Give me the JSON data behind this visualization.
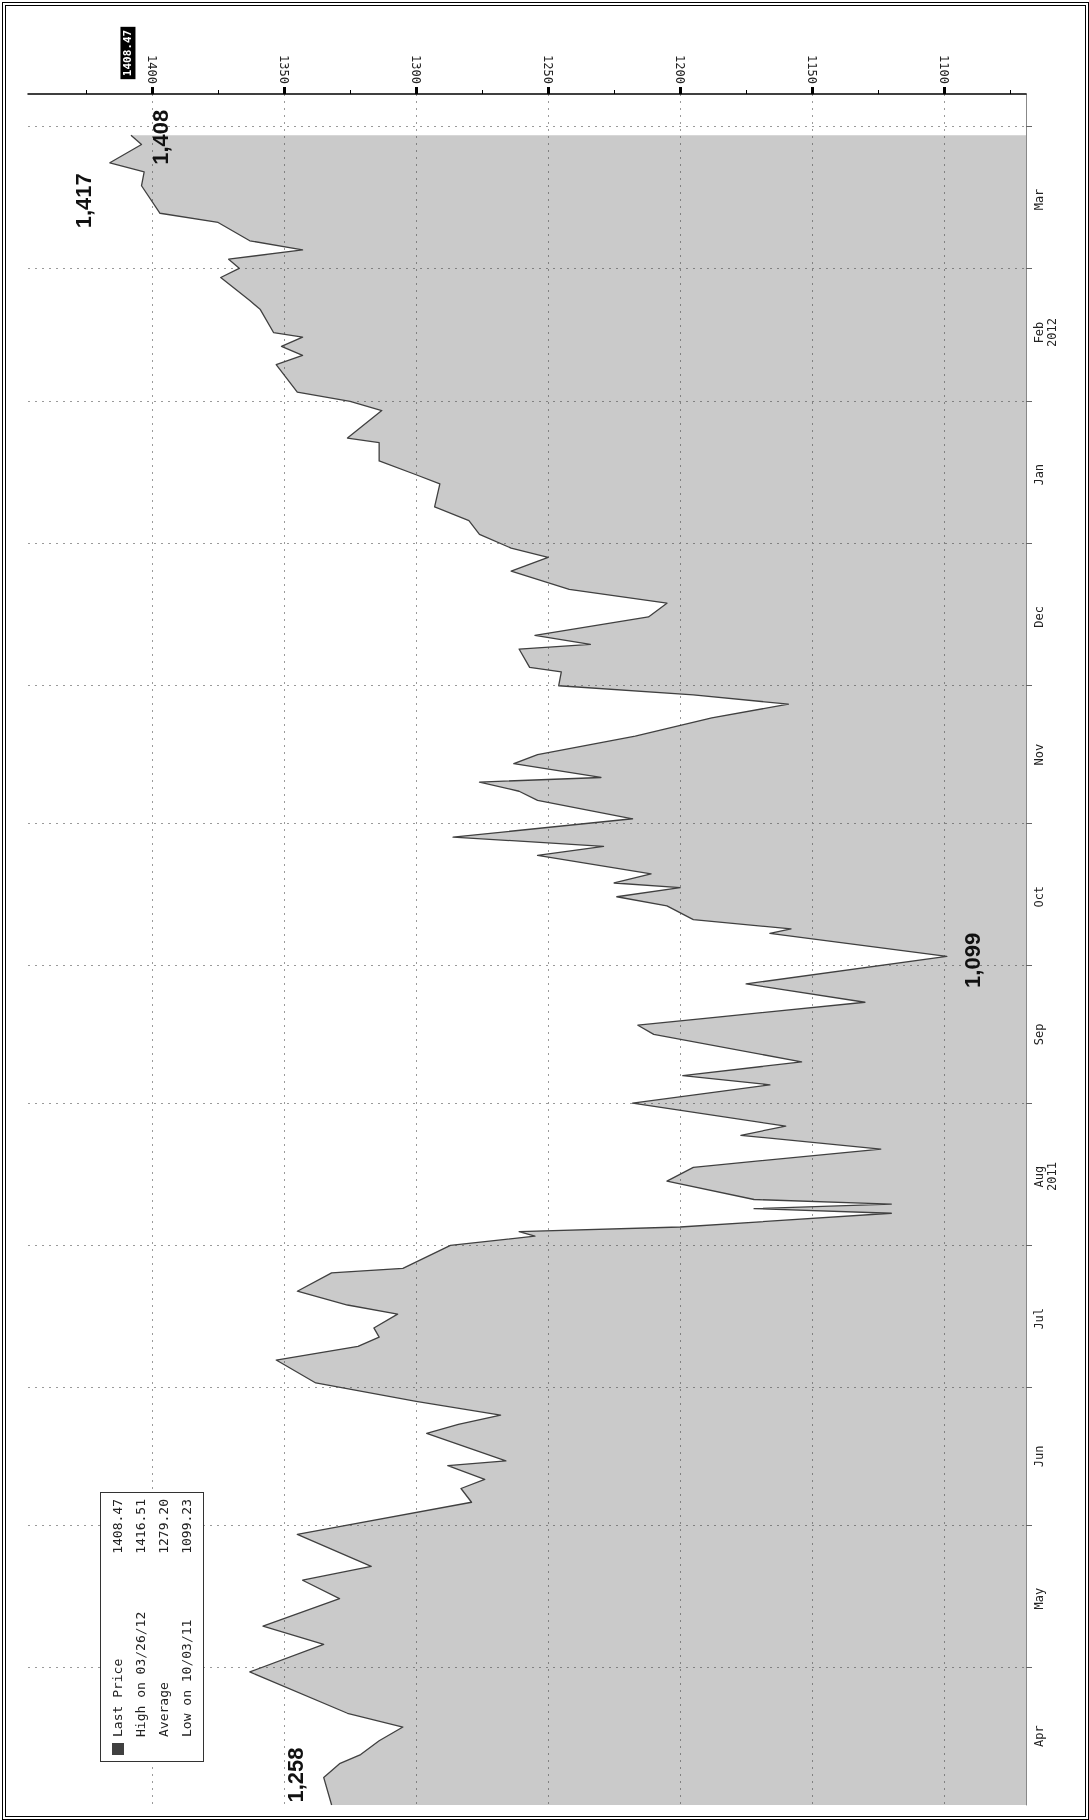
{
  "chart_data": {
    "type": "area",
    "orientation": "horizontal",
    "x": [
      "2011-04-01",
      "2011-04-07",
      "2011-04-10",
      "2011-04-12",
      "2011-04-15",
      "2011-04-18",
      "2011-04-21",
      "2011-04-30",
      "2011-05-06",
      "2011-05-10",
      "2011-05-16",
      "2011-05-20",
      "2011-05-23",
      "2011-05-30",
      "2011-06-06",
      "2011-06-09",
      "2011-06-11",
      "2011-06-14",
      "2011-06-15",
      "2011-06-21",
      "2011-06-23",
      "2011-06-25",
      "2011-06-28",
      "2011-07-02",
      "2011-07-07",
      "2011-07-10",
      "2011-07-12",
      "2011-07-14",
      "2011-07-17",
      "2011-07-19",
      "2011-07-22",
      "2011-07-26",
      "2011-07-27",
      "2011-08-01",
      "2011-08-03",
      "2011-08-04",
      "2011-08-05",
      "2011-08-08",
      "2011-08-09",
      "2011-08-10",
      "2011-08-11",
      "2011-08-15",
      "2011-08-18",
      "2011-08-22",
      "2011-08-25",
      "2011-08-27",
      "2011-09-01",
      "2011-09-05",
      "2011-09-07",
      "2011-09-10",
      "2011-09-16",
      "2011-09-18",
      "2011-09-23",
      "2011-09-27",
      "2011-10-03",
      "2011-10-08",
      "2011-10-09",
      "2011-10-11",
      "2011-10-14",
      "2011-10-16",
      "2011-10-18",
      "2011-10-19",
      "2011-10-21",
      "2011-10-25",
      "2011-10-27",
      "2011-10-29",
      "2011-11-02",
      "2011-11-06",
      "2011-11-08",
      "2011-11-10",
      "2011-11-11",
      "2011-11-14",
      "2011-11-16",
      "2011-11-20",
      "2011-11-24",
      "2011-11-27",
      "2011-11-29",
      "2011-12-01",
      "2011-12-04",
      "2011-12-05",
      "2011-12-09",
      "2011-12-10",
      "2011-12-12",
      "2011-12-16",
      "2011-12-19",
      "2011-12-22",
      "2011-12-26",
      "2011-12-29",
      "2011-12-31",
      "2012-01-03",
      "2012-01-06",
      "2012-01-09",
      "2012-01-14",
      "2012-01-16",
      "2012-01-19",
      "2012-01-23",
      "2012-01-24",
      "2012-01-30",
      "2012-02-01",
      "2012-02-03",
      "2012-02-09",
      "2012-02-11",
      "2012-02-13",
      "2012-02-15",
      "2012-02-16",
      "2012-02-21",
      "2012-02-23",
      "2012-02-28",
      "2012-03-01",
      "2012-03-03",
      "2012-03-05",
      "2012-03-07",
      "2012-03-11",
      "2012-03-13",
      "2012-03-19",
      "2012-03-22",
      "2012-03-24",
      "2012-03-28",
      "2012-03-30"
    ],
    "series": [
      {
        "name": "Last Price",
        "color": "#404040",
        "values": [
          1332,
          1335,
          1329,
          1321,
          1314,
          1305,
          1326,
          1363,
          1335,
          1358,
          1329,
          1343,
          1317,
          1345,
          1279,
          1283,
          1274,
          1288,
          1266,
          1296,
          1284,
          1268,
          1300,
          1338,
          1353,
          1322,
          1314,
          1316,
          1307,
          1326,
          1345,
          1332,
          1305,
          1287,
          1255,
          1261,
          1200,
          1120,
          1172,
          1120,
          1172,
          1205,
          1195,
          1124,
          1177,
          1160,
          1218,
          1166,
          1199,
          1154,
          1210,
          1216,
          1130,
          1175,
          1099,
          1166,
          1158,
          1195,
          1205,
          1224,
          1200,
          1225,
          1211,
          1254,
          1229,
          1286,
          1218,
          1254,
          1261,
          1276,
          1230,
          1263,
          1254,
          1217,
          1188,
          1159,
          1195,
          1246,
          1245,
          1257,
          1261,
          1234,
          1255,
          1212,
          1205,
          1242,
          1264,
          1250,
          1264,
          1276,
          1280,
          1293,
          1291,
          1300,
          1314,
          1314,
          1326,
          1313,
          1325,
          1345,
          1353,
          1343,
          1351,
          1343,
          1354,
          1359,
          1363,
          1374,
          1367,
          1371,
          1343,
          1363,
          1375,
          1397,
          1404,
          1403,
          1416,
          1404,
          1408
        ]
      }
    ],
    "ylim": [
      "2011-04-01",
      "2012-04-08"
    ],
    "yticks": [
      {
        "value": "2011-05-01",
        "label": null
      },
      {
        "value": "2011-06-01",
        "label": null
      },
      {
        "value": "2011-07-01",
        "label": null
      },
      {
        "value": "2011-08-01",
        "label": null
      },
      {
        "value": "2011-09-01",
        "label": null
      },
      {
        "value": "2011-10-01",
        "label": null
      },
      {
        "value": "2011-11-01",
        "label": null
      },
      {
        "value": "2011-12-01",
        "label": null
      },
      {
        "value": "2012-01-01",
        "label": null
      },
      {
        "value": "2012-02-01",
        "label": null
      },
      {
        "value": "2012-03-01",
        "label": null
      },
      {
        "value": "2012-04-01",
        "label": null
      },
      {
        "value": "2011-04-16",
        "label": "Apr"
      },
      {
        "value": "2011-05-16",
        "label": "May"
      },
      {
        "value": "2011-06-16",
        "label": "Jun"
      },
      {
        "value": "2011-07-16",
        "label": "Jul"
      },
      {
        "value": "2011-08-16",
        "label": "Aug\n2011"
      },
      {
        "value": "2011-09-16",
        "label": "Sep"
      },
      {
        "value": "2011-10-16",
        "label": "Oct"
      },
      {
        "value": "2011-11-16",
        "label": "Nov"
      },
      {
        "value": "2011-12-16",
        "label": "Dec"
      },
      {
        "value": "2012-01-16",
        "label": "Jan"
      },
      {
        "value": "2012-02-16",
        "label": "Feb\n2012"
      },
      {
        "value": "2012-03-16",
        "label": "Mar"
      }
    ],
    "xlim": [
      1447,
      1069
    ],
    "xticks": [
      {
        "value": 1425,
        "label": null
      },
      1400,
      {
        "value": 1375,
        "label": null
      },
      1350,
      {
        "value": 1325,
        "label": null
      },
      1300,
      {
        "value": 1275,
        "label": null
      },
      1250,
      {
        "value": 1225,
        "label": null
      },
      1200,
      {
        "value": 1175,
        "label": null
      },
      1150,
      {
        "value": 1125,
        "label": null
      },
      1100,
      {
        "value": 1075,
        "label": null
      }
    ],
    "annotations": [
      {
        "text": "1,417",
        "x": 1416,
        "y": "2012-03-24"
      },
      {
        "text": "1,408",
        "x": 1408,
        "y": "2012-03-30"
      },
      {
        "text": "1,099",
        "x": 1099,
        "y": "2011-10-03"
      },
      "1,258",
      "1408.47",
      "1408.47",
      "High on 03/26/12",
      "1416.51",
      "Average",
      "1279.20",
      "Low on 10/03/11",
      "1099.23"
    ],
    "grid": true,
    "legend": "bottom left",
    "marker": "none",
    "line_style": "solid"
  }
}
